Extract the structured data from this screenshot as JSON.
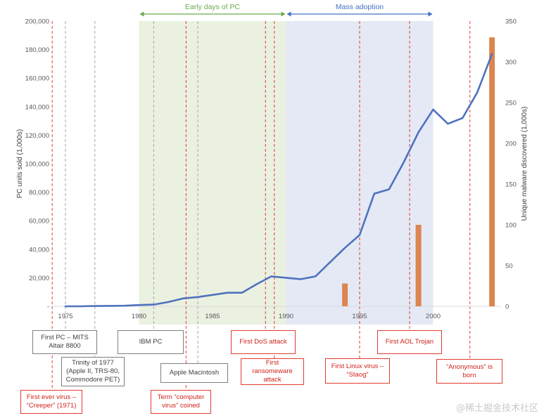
{
  "chart_data": {
    "type": "line",
    "xlim": [
      1972.5,
      2005
    ],
    "y_left": {
      "label": "PC units sold (1,000s)",
      "lim": [
        0,
        200000
      ],
      "ticks": [
        "-",
        "20,000",
        "40,000",
        "60,000",
        "80,000",
        "100,000",
        "120,000",
        "140,000",
        "160,000",
        "180,000",
        "200,000"
      ]
    },
    "y_right": {
      "label": "Unique malware discovered (1,000s)",
      "lim": [
        0,
        350
      ],
      "ticks": [
        "0",
        "50",
        "100",
        "150",
        "200",
        "250",
        "300",
        "350"
      ]
    },
    "x_ticks": [
      "1975",
      "1980",
      "1985",
      "1990",
      "1995",
      "2000"
    ],
    "colors": {
      "line": "#4f72be",
      "bars": "#dc8550",
      "early_band": "#eaf1e1",
      "mass_band": "#e4e9f5",
      "early_arrow": "#6aaa4e",
      "mass_arrow": "#4472c4"
    },
    "series": [
      {
        "type": "line",
        "axis": "left",
        "x": [
          1975,
          1976,
          1977,
          1978,
          1979,
          1980,
          1981,
          1982,
          1983,
          1984,
          1985,
          1986,
          1987,
          1988,
          1989,
          1990,
          1991,
          1992,
          1993,
          1994,
          1995,
          1996,
          1997,
          1998,
          1999,
          2000,
          2001,
          2002,
          2003,
          2004
        ],
        "values": [
          0,
          0,
          200,
          300,
          400,
          900,
          1200,
          3000,
          5500,
          6500,
          8000,
          9500,
          9500,
          15500,
          21000,
          20000,
          19000,
          21000,
          31000,
          41000,
          50000,
          79000,
          82000,
          101000,
          122000,
          138000,
          128000,
          132000,
          150000,
          177000
        ]
      },
      {
        "type": "bar",
        "axis": "right",
        "x": [
          1994,
          1999,
          2004
        ],
        "values": [
          28,
          100,
          330
        ]
      }
    ],
    "eras": [
      {
        "label": "Early days of PC",
        "start": 1980,
        "end": 1990
      },
      {
        "label": "Mass adoption",
        "start": 1990,
        "end": 2000
      }
    ],
    "events": [
      {
        "year": 1974.1,
        "style": "red",
        "label": "First ever virus –\n“Creeper” (1971)"
      },
      {
        "year": 1975,
        "style": "gray",
        "label": "First PC – MITS\nAltair 8800"
      },
      {
        "year": 1977,
        "style": "gray",
        "label": "Trinity of 1977\n(Apple II, TRS-80,\nCommodore PET)"
      },
      {
        "year": 1981,
        "style": "gray",
        "label": "IBM PC"
      },
      {
        "year": 1983.2,
        "style": "red",
        "label": "Term “computer\nvirus” coined"
      },
      {
        "year": 1984,
        "style": "gray",
        "label": "Apple Macintosh"
      },
      {
        "year": 1988.6,
        "style": "red",
        "label": "First DoS attack"
      },
      {
        "year": 1989.2,
        "style": "red",
        "label": "First\nransomeware\nattack"
      },
      {
        "year": 1995,
        "style": "red",
        "label": "First Linux virus –\n“Staog”"
      },
      {
        "year": 1998.4,
        "style": "red",
        "label": "First AOL Trojan"
      },
      {
        "year": 2002.5,
        "style": "red",
        "label": "“Anonymous” is\nborn"
      }
    ]
  },
  "watermark": "@稀土掘金技术社区"
}
